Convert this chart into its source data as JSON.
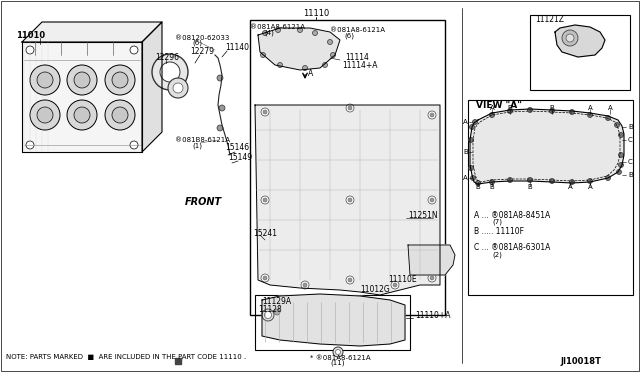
{
  "bg_color": "#f5f5f0",
  "border_color": "#000000",
  "text_color": "#000000",
  "line_color": "#333333",
  "note_text": "NOTE: PARTS MARKED  ■  ARE INCLUDED IN THE PART CODE 11110 .",
  "part_id": "JI10018T",
  "labels": {
    "main_block": "11010",
    "gasket_label": "12296",
    "item_12279": "12279",
    "bolt2_code": "®08120-62033",
    "bolt2_qty": "(6)",
    "item_11140": "11140",
    "bolt3_code": "®081A8-6121A",
    "bolt3_qty4": "(4)",
    "bolt4_code": "®081A8-6121A",
    "bolt4_qty6": "(6)",
    "item_11114": "11114",
    "item_11114a": "11114+A",
    "item_081B8": "®081B8-6121A",
    "item_081B8_qty": "(1)",
    "item_15146": "15146",
    "item_15149": "15149",
    "item_15241": "15241",
    "item_11110": "11110",
    "item_11110e": "11110E",
    "item_11012g": "11012G",
    "item_11251n": "11251N",
    "item_11110a": "11110+A",
    "item_11129a": "11129A",
    "item_11128": "11128",
    "bolt5_code": "®081A8-6121A",
    "bolt5_qty": "(11)",
    "item_11121z": "11121Z",
    "view_a_title": "VIEW \"A\"",
    "legend_a": "A ... ®081A8-8451A",
    "legend_a2": "(7)",
    "legend_b": "B ..... 11110F",
    "legend_c": "C ... ®081A8-6301A",
    "legend_c2": "(2)",
    "front_label": "FRONT"
  }
}
